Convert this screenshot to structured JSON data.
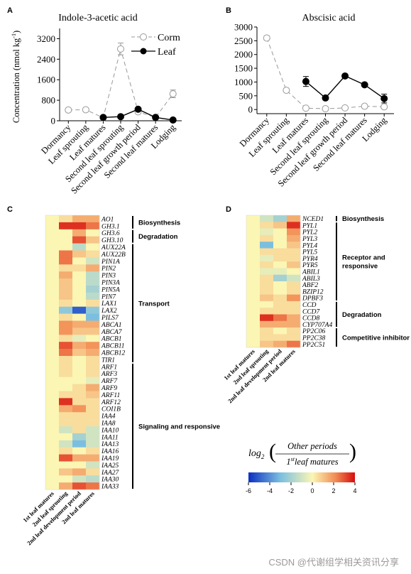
{
  "panel_labels": {
    "a": "A",
    "b": "B",
    "c": "C",
    "d": "D"
  },
  "chart_data": [
    {
      "type": "line",
      "title": "Indole-3-acetic acid",
      "ylabel": "Concentration (nmol kg",
      "ylabel_sup": "-1",
      "ylabel_close": ")",
      "ylim": [
        0,
        3600
      ],
      "yticks": [
        0,
        800,
        1600,
        2400,
        3200
      ],
      "categories": [
        "Dormancy",
        "Leaf sprouting",
        "Leaf matures",
        "Second leaf sprouting",
        "Second leaf growth period",
        "Second leaf matures",
        "Lodging"
      ],
      "legend_position": "top-right",
      "series": [
        {
          "name": "Corm",
          "style": "dashed-open",
          "values": [
            420,
            430,
            120,
            2800,
            350,
            130,
            1050
          ],
          "errors": [
            40,
            40,
            30,
            230,
            60,
            30,
            150
          ]
        },
        {
          "name": "Leaf",
          "style": "solid-filled",
          "values": [
            null,
            null,
            130,
            160,
            450,
            130,
            30
          ],
          "errors": [
            null,
            null,
            20,
            30,
            60,
            40,
            10
          ]
        }
      ]
    },
    {
      "type": "line",
      "title": "Abscisic acid",
      "ylim": [
        -150,
        3000
      ],
      "yticks": [
        0,
        500,
        1000,
        1500,
        2000,
        2500,
        3000
      ],
      "categories": [
        "Dormancy",
        "Leaf sprouting",
        "Leaf matures",
        "Second leaf sprouting",
        "Second leaf growth period",
        "Second leaf matures",
        "Lodging"
      ],
      "series": [
        {
          "name": "Corm",
          "style": "dashed-open",
          "values": [
            2600,
            700,
            50,
            30,
            60,
            120,
            100
          ],
          "errors": [
            80,
            40,
            10,
            10,
            10,
            20,
            30
          ]
        },
        {
          "name": "Leaf",
          "style": "solid-filled",
          "values": [
            null,
            null,
            1020,
            420,
            1220,
            900,
            400
          ],
          "errors": [
            null,
            null,
            180,
            30,
            50,
            40,
            160
          ]
        }
      ]
    },
    {
      "type": "heatmap",
      "columns": [
        "1st leaf matures",
        "2nd leaf sprouting",
        "2nd leaf development period",
        "2nd leaf matures"
      ],
      "rows": [
        "AO1",
        "GH3.1",
        "GH3.6",
        "GH3.10",
        "AUX22A",
        "AUX22B",
        "PIN1A",
        "PIN2",
        "PIN3",
        "PIN3A",
        "PIN5A",
        "PIN7",
        "LAX1",
        "LAX2",
        "PILS7",
        "ABCA1",
        "ABCA7",
        "ABCB1",
        "ABCB11",
        "ABCB12",
        "TIR1",
        "ARF1",
        "ARF3",
        "ARF7",
        "ARF9",
        "ARF11",
        "ARF12",
        "COI1B",
        "IAA4",
        "IAA8",
        "IAA10",
        "IAA11",
        "IAA13",
        "IAA16",
        "IAA19",
        "IAA25",
        "IAA27",
        "IAA30",
        "IAA33"
      ],
      "values": [
        [
          0,
          0.5,
          1.5,
          1.5
        ],
        [
          0,
          3.5,
          3.5,
          2.5
        ],
        [
          0,
          0,
          1.5,
          0
        ],
        [
          0,
          0,
          3,
          1
        ],
        [
          0,
          0,
          -1.5,
          0
        ],
        [
          0,
          2.5,
          1,
          0.5
        ],
        [
          0,
          2.5,
          0,
          -1
        ],
        [
          0,
          0.5,
          0.5,
          1.5
        ],
        [
          0,
          1.5,
          0,
          -1.5
        ],
        [
          0,
          1,
          0,
          -1.5
        ],
        [
          0,
          1,
          0,
          -2
        ],
        [
          0,
          1,
          0,
          -1.5
        ],
        [
          0,
          0.5,
          0,
          0.5
        ],
        [
          0,
          -2.5,
          -5,
          -2.5
        ],
        [
          0,
          0.5,
          0,
          -3
        ],
        [
          0,
          2,
          1.5,
          1.5
        ],
        [
          0,
          2,
          1,
          1
        ],
        [
          0,
          0.5,
          -0.5,
          0
        ],
        [
          0,
          3,
          1.5,
          2
        ],
        [
          0,
          2.5,
          1,
          1.5
        ],
        [
          0,
          0.5,
          0,
          0.5
        ],
        [
          0,
          0.5,
          0,
          0.5
        ],
        [
          0,
          0.5,
          0,
          0.5
        ],
        [
          0,
          0,
          0,
          -0.5
        ],
        [
          0,
          0,
          0.5,
          1.5
        ],
        [
          0,
          0.5,
          0.5,
          1
        ],
        [
          0,
          3.5,
          0.5,
          0.5
        ],
        [
          0,
          1.5,
          2,
          0.5
        ],
        [
          0,
          0.5,
          0.5,
          0.5
        ],
        [
          0,
          0.5,
          0.5,
          0.5
        ],
        [
          0,
          -1,
          0.5,
          -1
        ],
        [
          0,
          0,
          -2,
          -1
        ],
        [
          0,
          -1,
          -3,
          -1
        ],
        [
          0,
          0.5,
          0,
          0.5
        ],
        [
          0,
          3,
          1.5,
          1.5
        ],
        [
          0,
          0,
          0,
          -1
        ],
        [
          0,
          1,
          1.5,
          0.5
        ],
        [
          0,
          0,
          -1,
          -1.5
        ],
        [
          0,
          1.5,
          3,
          2.5
        ]
      ],
      "annotations": [
        {
          "label": "Biosynthesis",
          "from": 0,
          "to": 1
        },
        {
          "label": "Degradation",
          "from": 2,
          "to": 3
        },
        {
          "label": "Transport",
          "from": 4,
          "to": 20
        },
        {
          "label": "Signaling and responsive",
          "from": 21,
          "to": 38
        }
      ]
    },
    {
      "type": "heatmap",
      "columns": [
        "1st leaf matures",
        "2nd leaf sprouting",
        "2nd leaf development period",
        "2nd leaf matures"
      ],
      "rows": [
        "NCED1",
        "PYL1",
        "PYL2",
        "PYL3",
        "PYL4",
        "PYL5",
        "PYR4",
        "PYR5",
        "ABIL1",
        "ABIL3",
        "ABF2",
        "BZIP12",
        "DPBF3",
        "CCD",
        "CCD7",
        "CCD8",
        "CYP707A4",
        "PP2C06",
        "PP2C38",
        "PP2C51"
      ],
      "values": [
        [
          0,
          -1,
          -2,
          1.5
        ],
        [
          0,
          0.5,
          1,
          3.5
        ],
        [
          0,
          -0.5,
          0,
          2
        ],
        [
          0,
          0.5,
          0,
          1.5
        ],
        [
          0,
          -3,
          0,
          1
        ],
        [
          0,
          0.5,
          0.5,
          0.5
        ],
        [
          0,
          -0.5,
          0.5,
          0.5
        ],
        [
          0,
          0.5,
          0,
          1
        ],
        [
          0,
          -0.5,
          -0.5,
          0
        ],
        [
          0,
          0.5,
          -2,
          -1
        ],
        [
          0,
          0.5,
          0,
          0.5
        ],
        [
          0,
          0.5,
          0,
          0.5
        ],
        [
          0,
          1,
          0.5,
          2
        ],
        [
          0,
          0,
          0.5,
          0.5
        ],
        [
          0,
          0.5,
          0.5,
          0.5
        ],
        [
          0,
          3.5,
          2.5,
          1.5
        ],
        [
          0,
          1.5,
          1.5,
          1.5
        ],
        [
          0,
          0.5,
          0,
          0.5
        ],
        [
          0,
          0.5,
          0.5,
          0.5
        ],
        [
          0,
          1,
          1.5,
          2.5
        ]
      ],
      "annotations": [
        {
          "label": "Biosynthesis",
          "from": 0,
          "to": 0
        },
        {
          "label": "Receptor and responsive",
          "from": 1,
          "to": 12
        },
        {
          "label": "Degradation",
          "from": 13,
          "to": 16
        },
        {
          "label": "Competitive inhibitor",
          "from": 17,
          "to": 19
        }
      ]
    }
  ],
  "colorbar": {
    "formula_prefix": "log",
    "formula_sub": "2",
    "numerator": "Other periods",
    "denominator": "leaf matures",
    "denominator_sup": "st",
    "denominator_num": "1",
    "range": [
      -6,
      4
    ],
    "ticks": [
      -6,
      -4,
      -2,
      0,
      2,
      4
    ],
    "colors": [
      "#0c2fc1",
      "#7bbfe0",
      "#fbf6b3",
      "#f28a52",
      "#d60d0d"
    ]
  },
  "watermark": "CSDN @代谢组学相关资讯分享"
}
